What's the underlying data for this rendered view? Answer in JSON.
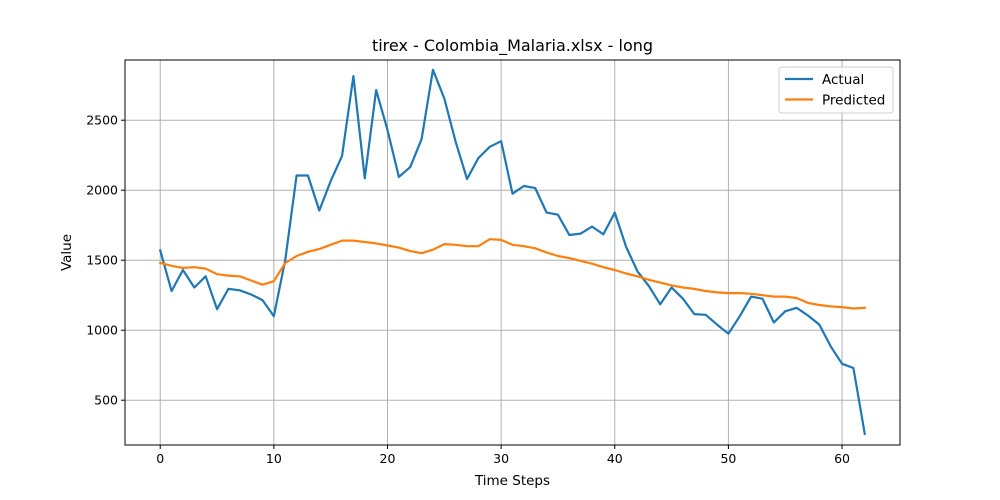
{
  "chart_data": {
    "type": "line",
    "title": "tirex - Colombia_Malaria.xlsx - long",
    "xlabel": "Time Steps",
    "ylabel": "Value",
    "xlim": [
      -3.1,
      65.1
    ],
    "ylim": [
      180,
      2930
    ],
    "xticks": [
      0,
      10,
      20,
      30,
      40,
      50,
      60
    ],
    "yticks": [
      500,
      1000,
      1500,
      2000,
      2500
    ],
    "grid": true,
    "legend_position": "top-right",
    "series": [
      {
        "name": "Actual",
        "color": "#1f77b4",
        "values": [
          1570,
          1280,
          1430,
          1305,
          1385,
          1150,
          1295,
          1285,
          1255,
          1215,
          1100,
          1500,
          2105,
          2105,
          1855,
          2065,
          2245,
          2815,
          2085,
          2715,
          2430,
          2095,
          2165,
          2365,
          2860,
          2655,
          2345,
          2080,
          2230,
          2310,
          2350,
          1975,
          2030,
          2015,
          1840,
          1825,
          1680,
          1690,
          1740,
          1685,
          1840,
          1595,
          1420,
          1315,
          1185,
          1305,
          1225,
          1115,
          1110,
          1040,
          975,
          1100,
          1240,
          1225,
          1055,
          1135,
          1160,
          1105,
          1040,
          885,
          760,
          730,
          260
        ]
      },
      {
        "name": "Predicted",
        "color": "#ff7f0e",
        "values": [
          1480,
          1460,
          1445,
          1450,
          1440,
          1400,
          1390,
          1385,
          1355,
          1325,
          1350,
          1480,
          1530,
          1560,
          1580,
          1610,
          1640,
          1640,
          1630,
          1620,
          1605,
          1590,
          1565,
          1550,
          1575,
          1615,
          1610,
          1600,
          1600,
          1650,
          1645,
          1610,
          1600,
          1585,
          1555,
          1530,
          1515,
          1495,
          1475,
          1450,
          1430,
          1405,
          1385,
          1360,
          1340,
          1320,
          1305,
          1295,
          1280,
          1270,
          1265,
          1265,
          1260,
          1250,
          1240,
          1240,
          1230,
          1195,
          1180,
          1170,
          1165,
          1155,
          1160
        ]
      }
    ]
  }
}
